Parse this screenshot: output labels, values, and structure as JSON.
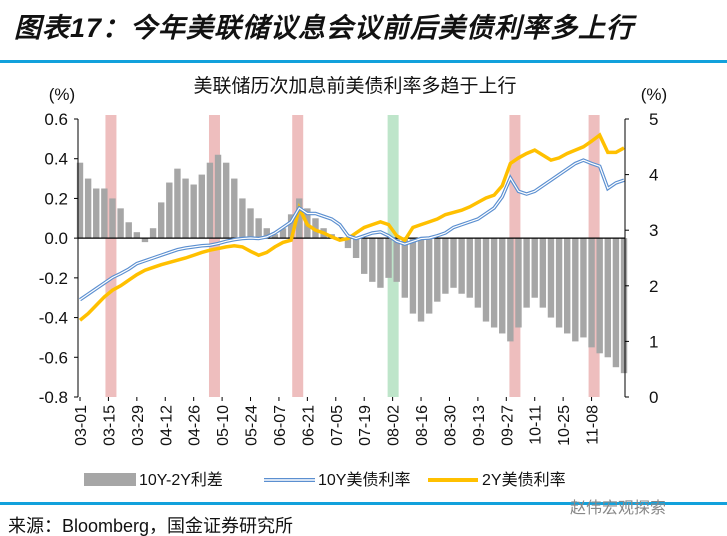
{
  "header": {
    "title": "图表17：今年美联储议息会议前后美债利率多上行"
  },
  "footer": {
    "source": "来源：Bloomberg，国金证券研究所",
    "watermark": "赵伟宏观探索"
  },
  "colors": {
    "spread": "#a6a6a6",
    "y10": "#5b8fd0",
    "y2": "#ffc000",
    "hike_band": "#e8a8a8",
    "cut_band": "#a8dcb8",
    "rule": "#12a1dc"
  },
  "chart_data": {
    "type": "bar+line",
    "title": "美联储历次加息前美债利率多趋于上行",
    "left_unit": "(%)",
    "right_unit": "(%)",
    "ylim_left": [
      -0.8,
      0.6
    ],
    "ylim_right": [
      0,
      5
    ],
    "left_ticks": [
      "0.6",
      "0.4",
      "0.2",
      "0.0",
      "-0.2",
      "-0.4",
      "-0.6",
      "-0.8"
    ],
    "right_ticks": [
      "5",
      "4",
      "3",
      "2",
      "1",
      "0"
    ],
    "x_tick_labels": [
      "03-01",
      "03-15",
      "03-29",
      "04-12",
      "04-26",
      "05-10",
      "05-24",
      "06-07",
      "06-21",
      "07-05",
      "07-19",
      "08-02",
      "08-16",
      "08-30",
      "09-13",
      "09-27",
      "10-11",
      "10-25",
      "11-08"
    ],
    "x_step_days": 4,
    "legend": [
      "10Y-2Y利差",
      "10Y美债利率",
      "2Y美债利率"
    ],
    "hike_band_days": [
      15,
      66,
      107,
      214,
      253
    ],
    "cut_band_days": [
      154
    ],
    "series": [
      {
        "name": "10Y-2Y利差",
        "axis": "left",
        "type": "bar",
        "values": [
          0.38,
          0.3,
          0.25,
          0.25,
          0.2,
          0.15,
          0.08,
          0.03,
          -0.02,
          0.05,
          0.18,
          0.28,
          0.35,
          0.3,
          0.27,
          0.32,
          0.38,
          0.42,
          0.38,
          0.3,
          0.2,
          0.15,
          0.1,
          0.05,
          0.02,
          0.05,
          0.12,
          0.2,
          0.15,
          0.1,
          0.05,
          0.02,
          -0.01,
          -0.05,
          -0.1,
          -0.18,
          -0.22,
          -0.25,
          -0.2,
          -0.22,
          -0.3,
          -0.38,
          -0.42,
          -0.38,
          -0.32,
          -0.28,
          -0.25,
          -0.28,
          -0.3,
          -0.35,
          -0.42,
          -0.45,
          -0.48,
          -0.52,
          -0.45,
          -0.35,
          -0.3,
          -0.35,
          -0.4,
          -0.45,
          -0.48,
          -0.52,
          -0.5,
          -0.55,
          -0.58,
          -0.6,
          -0.65,
          -0.68
        ]
      },
      {
        "name": "10Y美债利率",
        "axis": "right",
        "type": "line",
        "values": [
          1.75,
          1.85,
          1.95,
          2.05,
          2.15,
          2.22,
          2.3,
          2.4,
          2.45,
          2.5,
          2.55,
          2.6,
          2.65,
          2.68,
          2.7,
          2.72,
          2.73,
          2.76,
          2.8,
          2.83,
          2.85,
          2.86,
          2.85,
          2.88,
          2.95,
          3.05,
          3.15,
          3.4,
          3.3,
          3.3,
          3.25,
          3.2,
          3.1,
          2.9,
          2.85,
          2.9,
          2.95,
          2.97,
          2.9,
          2.8,
          2.75,
          2.8,
          2.85,
          2.86,
          2.9,
          2.95,
          3.05,
          3.1,
          3.15,
          3.2,
          3.3,
          3.4,
          3.6,
          3.94,
          3.7,
          3.65,
          3.7,
          3.8,
          3.9,
          4.0,
          4.1,
          4.2,
          4.26,
          4.2,
          4.15,
          3.75,
          3.85,
          3.9
        ]
      },
      {
        "name": "2Y美债利率",
        "axis": "right",
        "type": "line",
        "values": [
          1.38,
          1.5,
          1.65,
          1.8,
          1.92,
          2.0,
          2.1,
          2.2,
          2.28,
          2.33,
          2.38,
          2.42,
          2.46,
          2.5,
          2.55,
          2.6,
          2.64,
          2.67,
          2.7,
          2.72,
          2.7,
          2.62,
          2.55,
          2.6,
          2.7,
          2.78,
          2.82,
          3.4,
          3.1,
          3.0,
          2.95,
          2.88,
          2.82,
          2.85,
          2.95,
          3.05,
          3.1,
          3.15,
          3.1,
          2.9,
          2.82,
          3.05,
          3.1,
          3.15,
          3.2,
          3.28,
          3.32,
          3.36,
          3.42,
          3.5,
          3.58,
          3.63,
          3.8,
          4.2,
          4.3,
          4.38,
          4.44,
          4.35,
          4.26,
          4.3,
          4.38,
          4.44,
          4.5,
          4.6,
          4.71,
          4.4,
          4.4,
          4.48
        ]
      }
    ]
  }
}
